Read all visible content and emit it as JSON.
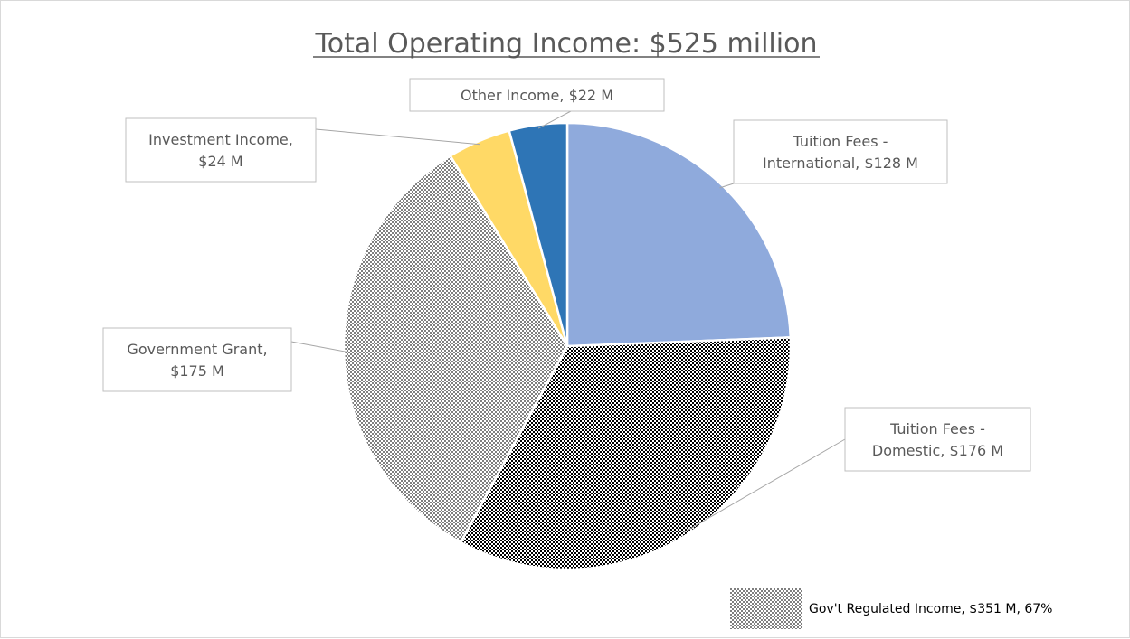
{
  "chart_data": {
    "type": "pie",
    "title": "Total Operating Income: $525 million",
    "unit": "M",
    "slices": [
      {
        "label_lines": [
          "Tuition Fees -",
          "International,  $128 M"
        ],
        "value": 128,
        "color": "#8faadc",
        "pattern": "none",
        "label_side": "right"
      },
      {
        "label_lines": [
          "Tuition Fees -",
          "Domestic,  $176 M"
        ],
        "value": 176,
        "color": "#000000",
        "pattern": "checker-dark",
        "label_side": "right"
      },
      {
        "label_lines": [
          "Government Grant,",
          "$175 M"
        ],
        "value": 175,
        "color": "#7f7f7f",
        "pattern": "checker-light",
        "label_side": "left"
      },
      {
        "label_lines": [
          "Investment Income,",
          "$24 M"
        ],
        "value": 24,
        "color": "#ffd966",
        "pattern": "none",
        "label_side": "left"
      },
      {
        "label_lines": [
          "Other Income,  $22 M"
        ],
        "value": 22,
        "color": "#2e75b6",
        "pattern": "none",
        "label_side": "top"
      }
    ],
    "legend": {
      "position": "bottom-right",
      "entries": [
        {
          "label": "Gov't Regulated Income, $351 M, 67%",
          "pattern": "checker-light",
          "color": "#7f7f7f"
        }
      ]
    }
  }
}
